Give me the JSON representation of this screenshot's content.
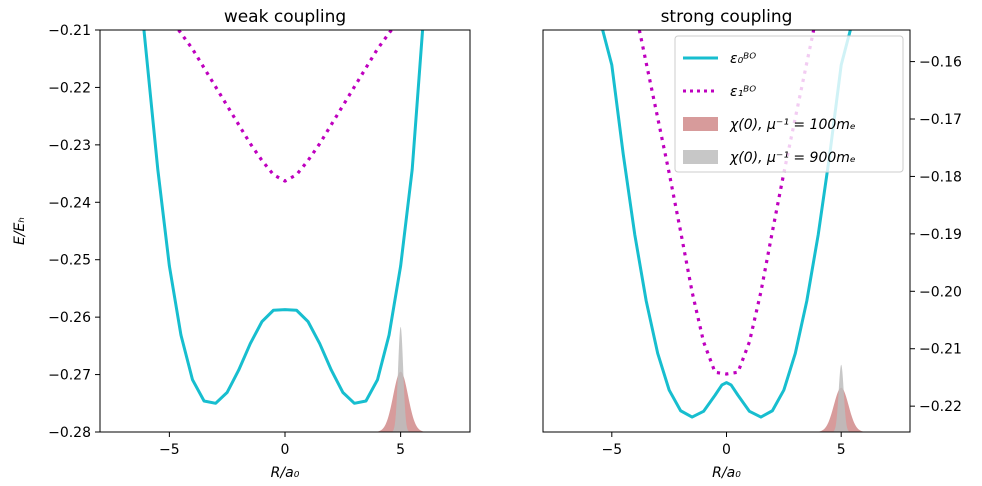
{
  "chart_data": [
    {
      "type": "line",
      "title": "weak coupling",
      "xlabel": "R/a₀",
      "ylabel": "E/Eₕ",
      "xlim": [
        -8,
        8
      ],
      "ylim": [
        -0.28,
        -0.21
      ],
      "xticks": [
        -5,
        0,
        5
      ],
      "yticks": [
        -0.28,
        -0.27,
        -0.26,
        -0.25,
        -0.24,
        -0.23,
        -0.22,
        -0.21
      ],
      "xtick_labels": [
        "−5",
        "0",
        "5"
      ],
      "ytick_labels": [
        "−0.28",
        "−0.27",
        "−0.26",
        "−0.25",
        "−0.24",
        "−0.23",
        "−0.22",
        "−0.21"
      ],
      "y_axis_side": "left",
      "grid": false,
      "series": [
        {
          "name": "ε₀ᴮᴼ",
          "style": "solid",
          "color": "#17becf",
          "x": [
            -6.1,
            -5.5,
            -5.0,
            -4.5,
            -4.0,
            -3.5,
            -3.0,
            -2.5,
            -2.0,
            -1.5,
            -1.0,
            -0.5,
            0.0,
            0.5,
            1.0,
            1.5,
            2.0,
            2.5,
            3.0,
            3.5,
            4.0,
            4.5,
            5.0,
            5.5,
            5.95
          ],
          "y": [
            -0.21,
            -0.2343,
            -0.2511,
            -0.2631,
            -0.2709,
            -0.2746,
            -0.275,
            -0.2731,
            -0.2692,
            -0.2646,
            -0.2608,
            -0.2588,
            -0.2587,
            -0.2588,
            -0.2608,
            -0.2646,
            -0.2692,
            -0.2731,
            -0.275,
            -0.2746,
            -0.2709,
            -0.2631,
            -0.2511,
            -0.2343,
            -0.21
          ]
        },
        {
          "name": "ε₁ᴮᴼ",
          "style": "dotted",
          "color": "#bf00bf",
          "x": [
            -4.6,
            -4.0,
            -3.5,
            -3.0,
            -2.5,
            -2.0,
            -1.5,
            -1.0,
            -0.5,
            0.0,
            0.5,
            1.0,
            1.5,
            2.0,
            2.5,
            3.0,
            3.5,
            4.0,
            4.6
          ],
          "y": [
            -0.21,
            -0.2133,
            -0.2166,
            -0.2199,
            -0.2232,
            -0.2265,
            -0.2298,
            -0.2327,
            -0.2352,
            -0.2363,
            -0.2352,
            -0.2327,
            -0.2298,
            -0.2265,
            -0.2232,
            -0.2199,
            -0.2166,
            -0.2133,
            -0.21
          ]
        },
        {
          "name": "χ(0), μ⁻¹ = 100mₑ",
          "style": "fill",
          "color": "#d08a8a",
          "center": 5.0,
          "width": 0.32,
          "peak": -0.2695,
          "baseline": -0.28
        },
        {
          "name": "χ(0), μ⁻¹ = 900mₑ",
          "style": "fill",
          "color": "#bdbdbd",
          "center": 5.0,
          "width": 0.11,
          "peak": -0.2617,
          "baseline": -0.28
        }
      ]
    },
    {
      "type": "line",
      "title": "strong coupling",
      "xlabel": "R/a₀",
      "ylabel": "",
      "xlim": [
        -8,
        8
      ],
      "ylim": [
        -0.2245,
        -0.1545
      ],
      "xticks": [
        -5,
        0,
        5
      ],
      "yticks": [
        -0.22,
        -0.21,
        -0.2,
        -0.19,
        -0.18,
        -0.17,
        -0.16
      ],
      "xtick_labels": [
        "−5",
        "0",
        "5"
      ],
      "ytick_labels": [
        "−0.22",
        "−0.21",
        "−0.20",
        "−0.19",
        "−0.18",
        "−0.17",
        "−0.16"
      ],
      "y_axis_side": "right",
      "grid": false,
      "legend_position": "top-right",
      "series": [
        {
          "name": "ε₀ᴮᴼ",
          "style": "solid",
          "color": "#17becf",
          "x": [
            -5.4,
            -5.0,
            -4.5,
            -4.0,
            -3.5,
            -3.0,
            -2.5,
            -2.0,
            -1.5,
            -1.0,
            -0.5,
            -0.2,
            0.0,
            0.2,
            0.5,
            1.0,
            1.5,
            2.0,
            2.5,
            3.0,
            3.5,
            4.0,
            4.5,
            5.0,
            5.4
          ],
          "y": [
            -0.1545,
            -0.1606,
            -0.1762,
            -0.1901,
            -0.2017,
            -0.2108,
            -0.2172,
            -0.2208,
            -0.2219,
            -0.2209,
            -0.2181,
            -0.2163,
            -0.2159,
            -0.2163,
            -0.2181,
            -0.2209,
            -0.2219,
            -0.2208,
            -0.2172,
            -0.2108,
            -0.2017,
            -0.1901,
            -0.1762,
            -0.1606,
            -0.1545
          ]
        },
        {
          "name": "ε₁ᴮᴼ",
          "style": "dotted",
          "color": "#bf00bf",
          "x": [
            -3.8,
            -3.0,
            -2.5,
            -2.0,
            -1.5,
            -1.0,
            -0.5,
            0.0,
            0.5,
            1.0,
            1.5,
            2.0,
            2.5,
            3.0,
            3.8
          ],
          "y": [
            -0.1545,
            -0.1698,
            -0.1794,
            -0.1896,
            -0.2001,
            -0.2088,
            -0.2141,
            -0.2144,
            -0.2141,
            -0.2088,
            -0.2001,
            -0.1896,
            -0.1794,
            -0.1698,
            -0.1545
          ]
        },
        {
          "name": "χ(0), μ⁻¹ = 100mₑ",
          "style": "fill",
          "color": "#d08a8a",
          "center": 5.0,
          "width": 0.32,
          "peak": -0.2168,
          "baseline": -0.2245
        },
        {
          "name": "χ(0), μ⁻¹ = 900mₑ",
          "style": "fill",
          "color": "#bdbdbd",
          "center": 5.0,
          "width": 0.11,
          "peak": -0.2128,
          "baseline": -0.2245
        }
      ]
    }
  ],
  "legend": {
    "entries": [
      {
        "name": "ε₀ᴮᴼ",
        "style": "solid",
        "color": "#17becf"
      },
      {
        "name": "ε₁ᴮᴼ",
        "style": "dotted",
        "color": "#bf00bf"
      },
      {
        "name": "χ(0), μ⁻¹ = 100mₑ",
        "style": "fill",
        "color": "#d08a8a"
      },
      {
        "name": "χ(0), μ⁻¹ = 900mₑ",
        "style": "fill",
        "color": "#bdbdbd"
      }
    ]
  }
}
